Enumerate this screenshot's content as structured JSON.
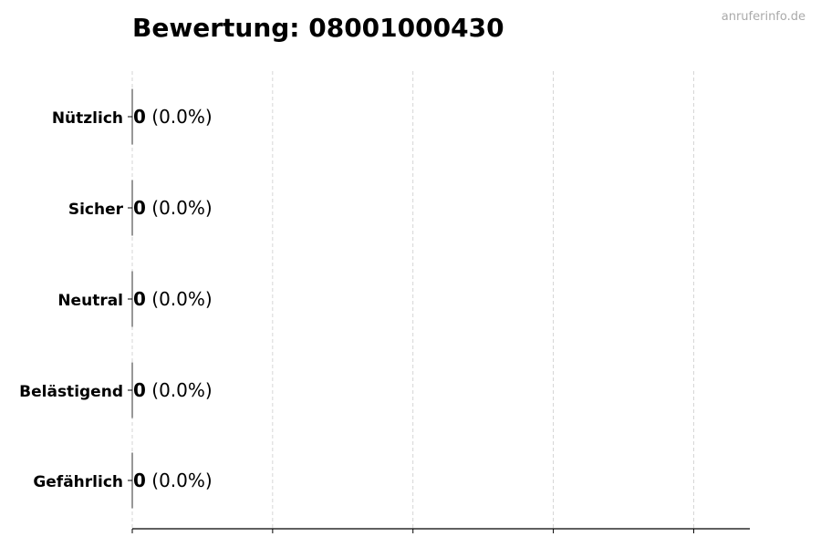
{
  "watermark": "anruferinfo.de",
  "chart_data": {
    "type": "bar",
    "orientation": "horizontal",
    "title": "Bewertung: 08001000430",
    "categories": [
      "Nützlich",
      "Sicher",
      "Neutral",
      "Belästigend",
      "Gefährlich"
    ],
    "values": [
      0,
      0,
      0,
      0,
      0
    ],
    "percent_labels": [
      "(0.0%)",
      "(0.0%)",
      "(0.0%)",
      "(0.0%)",
      "(0.0%)"
    ],
    "value_labels": [
      "0",
      "0",
      "0",
      "0",
      "0"
    ],
    "xlim": [
      0,
      4.4
    ],
    "xticks": [
      0,
      1,
      2,
      3,
      4
    ],
    "xtick_labels_shown": false,
    "grid": "x, dashed",
    "colors": {
      "bar_edge": "#333333",
      "grid": "#cccccc",
      "watermark": "#aaaaaa"
    }
  }
}
